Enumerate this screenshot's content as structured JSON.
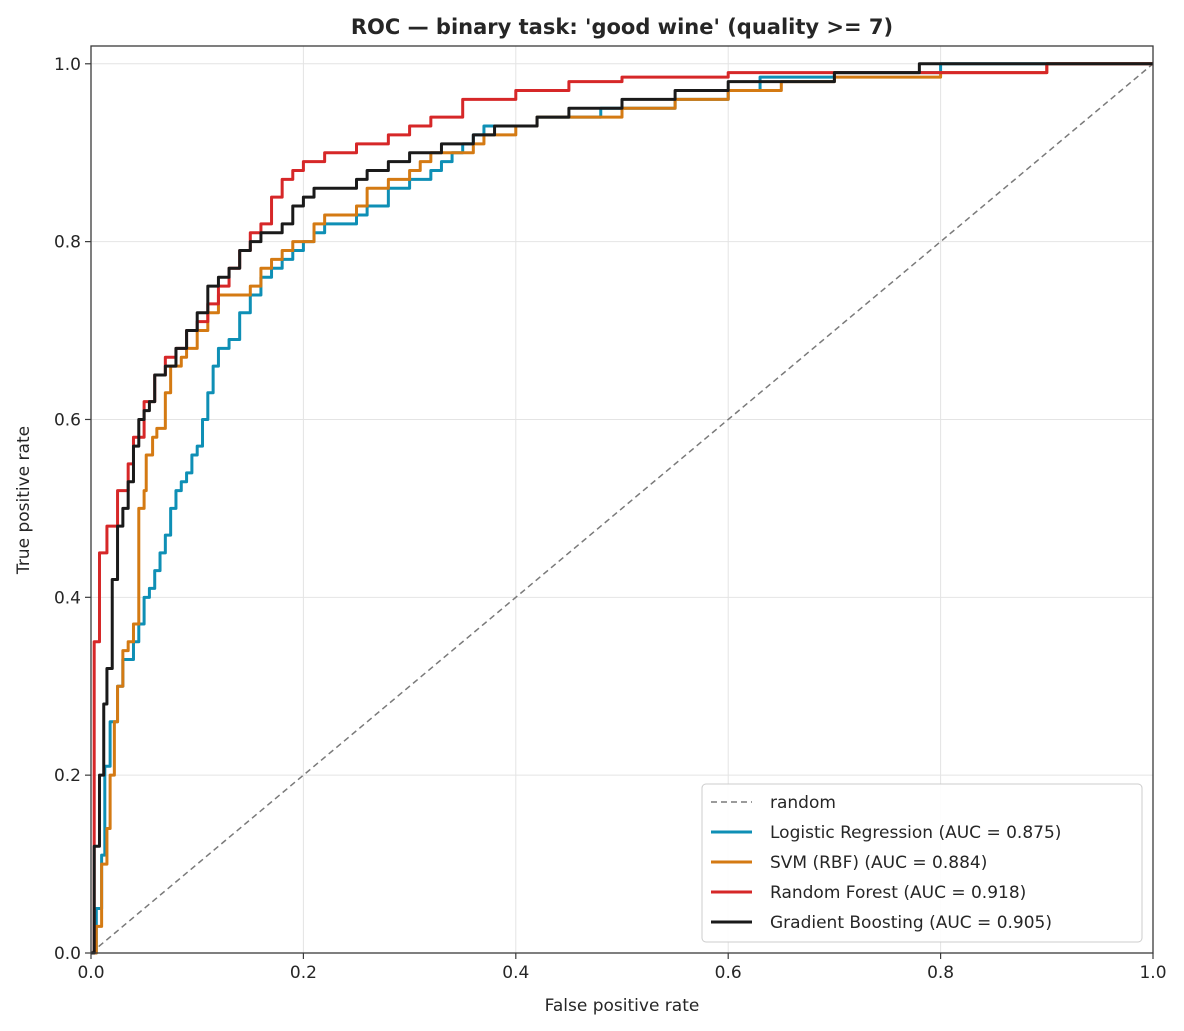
{
  "chart_data": {
    "type": "line",
    "title": "ROC — binary task: 'good wine' (quality >= 7)",
    "xlabel": "False positive rate",
    "ylabel": "True positive rate",
    "xlim": [
      0,
      1
    ],
    "ylim": [
      0,
      1.02
    ],
    "x_ticks": [
      "0.0",
      "0.2",
      "0.4",
      "0.6",
      "0.8",
      "1.0"
    ],
    "y_ticks": [
      "0.0",
      "0.2",
      "0.4",
      "0.6",
      "0.8",
      "1.0"
    ],
    "grid": true,
    "legend_position": "lower-right",
    "diagonal": {
      "name": "random",
      "color": "#7a7a7a",
      "dashed": true,
      "points": [
        [
          0,
          0
        ],
        [
          1,
          1
        ]
      ]
    },
    "series": [
      {
        "name": "Logistic Regression  (AUC = 0.875)",
        "color": "#0e8fb5",
        "points": [
          [
            0,
            0
          ],
          [
            0.005,
            0.05
          ],
          [
            0.01,
            0.11
          ],
          [
            0.013,
            0.21
          ],
          [
            0.018,
            0.26
          ],
          [
            0.025,
            0.3
          ],
          [
            0.03,
            0.33
          ],
          [
            0.04,
            0.35
          ],
          [
            0.045,
            0.37
          ],
          [
            0.05,
            0.4
          ],
          [
            0.055,
            0.41
          ],
          [
            0.06,
            0.43
          ],
          [
            0.065,
            0.45
          ],
          [
            0.07,
            0.47
          ],
          [
            0.075,
            0.5
          ],
          [
            0.08,
            0.52
          ],
          [
            0.085,
            0.53
          ],
          [
            0.09,
            0.54
          ],
          [
            0.095,
            0.56
          ],
          [
            0.1,
            0.57
          ],
          [
            0.105,
            0.6
          ],
          [
            0.11,
            0.63
          ],
          [
            0.115,
            0.66
          ],
          [
            0.12,
            0.68
          ],
          [
            0.13,
            0.69
          ],
          [
            0.14,
            0.72
          ],
          [
            0.15,
            0.74
          ],
          [
            0.16,
            0.76
          ],
          [
            0.17,
            0.77
          ],
          [
            0.18,
            0.78
          ],
          [
            0.19,
            0.79
          ],
          [
            0.2,
            0.8
          ],
          [
            0.21,
            0.81
          ],
          [
            0.22,
            0.82
          ],
          [
            0.24,
            0.82
          ],
          [
            0.25,
            0.83
          ],
          [
            0.26,
            0.84
          ],
          [
            0.27,
            0.84
          ],
          [
            0.28,
            0.86
          ],
          [
            0.3,
            0.87
          ],
          [
            0.32,
            0.88
          ],
          [
            0.33,
            0.89
          ],
          [
            0.34,
            0.9
          ],
          [
            0.35,
            0.91
          ],
          [
            0.36,
            0.92
          ],
          [
            0.37,
            0.93
          ],
          [
            0.4,
            0.93
          ],
          [
            0.42,
            0.94
          ],
          [
            0.48,
            0.95
          ],
          [
            0.55,
            0.96
          ],
          [
            0.6,
            0.97
          ],
          [
            0.63,
            0.985
          ],
          [
            0.7,
            0.99
          ],
          [
            0.8,
            1.0
          ],
          [
            1.0,
            1.0
          ]
        ]
      },
      {
        "name": "SVM (RBF)  (AUC = 0.884)",
        "color": "#d47a13",
        "points": [
          [
            0,
            0
          ],
          [
            0.005,
            0.03
          ],
          [
            0.01,
            0.1
          ],
          [
            0.015,
            0.14
          ],
          [
            0.018,
            0.2
          ],
          [
            0.022,
            0.26
          ],
          [
            0.025,
            0.3
          ],
          [
            0.03,
            0.34
          ],
          [
            0.035,
            0.35
          ],
          [
            0.04,
            0.37
          ],
          [
            0.045,
            0.5
          ],
          [
            0.05,
            0.52
          ],
          [
            0.052,
            0.56
          ],
          [
            0.058,
            0.58
          ],
          [
            0.062,
            0.59
          ],
          [
            0.07,
            0.63
          ],
          [
            0.075,
            0.66
          ],
          [
            0.085,
            0.67
          ],
          [
            0.09,
            0.68
          ],
          [
            0.1,
            0.7
          ],
          [
            0.11,
            0.72
          ],
          [
            0.12,
            0.74
          ],
          [
            0.14,
            0.74
          ],
          [
            0.15,
            0.75
          ],
          [
            0.16,
            0.77
          ],
          [
            0.17,
            0.78
          ],
          [
            0.18,
            0.79
          ],
          [
            0.19,
            0.8
          ],
          [
            0.21,
            0.82
          ],
          [
            0.22,
            0.83
          ],
          [
            0.24,
            0.83
          ],
          [
            0.25,
            0.84
          ],
          [
            0.26,
            0.86
          ],
          [
            0.28,
            0.87
          ],
          [
            0.3,
            0.88
          ],
          [
            0.31,
            0.89
          ],
          [
            0.32,
            0.9
          ],
          [
            0.34,
            0.9
          ],
          [
            0.36,
            0.91
          ],
          [
            0.37,
            0.92
          ],
          [
            0.4,
            0.93
          ],
          [
            0.42,
            0.94
          ],
          [
            0.5,
            0.95
          ],
          [
            0.55,
            0.96
          ],
          [
            0.6,
            0.97
          ],
          [
            0.65,
            0.98
          ],
          [
            0.7,
            0.985
          ],
          [
            0.8,
            0.99
          ],
          [
            0.9,
            1.0
          ],
          [
            1.0,
            1.0
          ]
        ]
      },
      {
        "name": "Random Forest  (AUC = 0.918)",
        "color": "#d62728",
        "points": [
          [
            0,
            0
          ],
          [
            0.003,
            0.35
          ],
          [
            0.008,
            0.45
          ],
          [
            0.015,
            0.48
          ],
          [
            0.025,
            0.52
          ],
          [
            0.035,
            0.55
          ],
          [
            0.04,
            0.58
          ],
          [
            0.05,
            0.62
          ],
          [
            0.06,
            0.65
          ],
          [
            0.07,
            0.67
          ],
          [
            0.08,
            0.68
          ],
          [
            0.09,
            0.7
          ],
          [
            0.1,
            0.71
          ],
          [
            0.11,
            0.73
          ],
          [
            0.12,
            0.75
          ],
          [
            0.13,
            0.77
          ],
          [
            0.14,
            0.79
          ],
          [
            0.15,
            0.81
          ],
          [
            0.16,
            0.82
          ],
          [
            0.17,
            0.85
          ],
          [
            0.18,
            0.87
          ],
          [
            0.19,
            0.88
          ],
          [
            0.2,
            0.89
          ],
          [
            0.22,
            0.9
          ],
          [
            0.25,
            0.91
          ],
          [
            0.28,
            0.92
          ],
          [
            0.3,
            0.93
          ],
          [
            0.32,
            0.94
          ],
          [
            0.35,
            0.96
          ],
          [
            0.4,
            0.97
          ],
          [
            0.45,
            0.98
          ],
          [
            0.5,
            0.985
          ],
          [
            0.6,
            0.99
          ],
          [
            0.7,
            0.99
          ],
          [
            0.8,
            0.99
          ],
          [
            0.9,
            1.0
          ],
          [
            1.0,
            1.0
          ]
        ]
      },
      {
        "name": "Gradient Boosting  (AUC = 0.905)",
        "color": "#1a1a1a",
        "points": [
          [
            0,
            0
          ],
          [
            0.003,
            0.12
          ],
          [
            0.008,
            0.2
          ],
          [
            0.012,
            0.28
          ],
          [
            0.015,
            0.32
          ],
          [
            0.02,
            0.42
          ],
          [
            0.025,
            0.48
          ],
          [
            0.03,
            0.5
          ],
          [
            0.035,
            0.53
          ],
          [
            0.04,
            0.57
          ],
          [
            0.045,
            0.6
          ],
          [
            0.05,
            0.61
          ],
          [
            0.055,
            0.62
          ],
          [
            0.06,
            0.65
          ],
          [
            0.07,
            0.66
          ],
          [
            0.08,
            0.68
          ],
          [
            0.09,
            0.7
          ],
          [
            0.1,
            0.72
          ],
          [
            0.11,
            0.75
          ],
          [
            0.12,
            0.76
          ],
          [
            0.13,
            0.77
          ],
          [
            0.14,
            0.79
          ],
          [
            0.15,
            0.8
          ],
          [
            0.16,
            0.81
          ],
          [
            0.18,
            0.82
          ],
          [
            0.19,
            0.84
          ],
          [
            0.2,
            0.85
          ],
          [
            0.21,
            0.86
          ],
          [
            0.22,
            0.86
          ],
          [
            0.25,
            0.87
          ],
          [
            0.26,
            0.88
          ],
          [
            0.28,
            0.89
          ],
          [
            0.3,
            0.9
          ],
          [
            0.33,
            0.91
          ],
          [
            0.36,
            0.92
          ],
          [
            0.38,
            0.93
          ],
          [
            0.42,
            0.94
          ],
          [
            0.45,
            0.95
          ],
          [
            0.5,
            0.96
          ],
          [
            0.55,
            0.97
          ],
          [
            0.6,
            0.98
          ],
          [
            0.7,
            0.99
          ],
          [
            0.78,
            1.0
          ],
          [
            1.0,
            1.0
          ]
        ]
      }
    ]
  }
}
